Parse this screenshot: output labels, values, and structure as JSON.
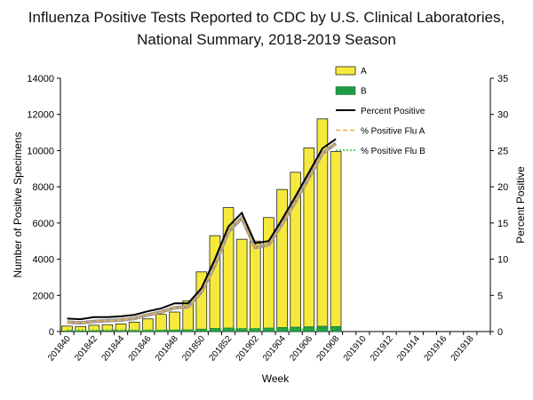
{
  "chart_data": {
    "type": "bar",
    "title": "Influenza Positive Tests Reported to CDC by U.S. Clinical Laboratories,",
    "subtitle": "National Summary, 2018-2019 Season",
    "xlabel": "Week",
    "ylabel": "Number of Positive Specimens",
    "y2label": "Percent Positive",
    "ylim": [
      0,
      14000
    ],
    "y2lim": [
      0,
      35
    ],
    "yticks": [
      "0",
      "2000",
      "4000",
      "6000",
      "8000",
      "10000",
      "12000",
      "14000"
    ],
    "y2ticks": [
      "0",
      "5",
      "10",
      "15",
      "20",
      "25",
      "30",
      "35"
    ],
    "x_tick_labels": [
      "201840",
      "201842",
      "201844",
      "201846",
      "201848",
      "201850",
      "201852",
      "201902",
      "201904",
      "201906",
      "201908",
      "201910",
      "201912",
      "201914",
      "201916",
      "201918"
    ],
    "weeks": [
      "201840",
      "201841",
      "201842",
      "201843",
      "201844",
      "201845",
      "201846",
      "201847",
      "201848",
      "201849",
      "201850",
      "201851",
      "201852",
      "201901",
      "201902",
      "201903",
      "201904",
      "201905",
      "201906",
      "201907",
      "201908",
      "201909",
      "201910",
      "201911",
      "201912",
      "201913",
      "201914",
      "201915",
      "201916",
      "201917",
      "201918",
      "201919"
    ],
    "series": [
      {
        "name": "A",
        "kind": "bar",
        "color": "#f5ea3c",
        "values": [
          300,
          280,
          350,
          380,
          420,
          520,
          700,
          950,
          1080,
          1700,
          3300,
          5300,
          6850,
          5100,
          5000,
          6300,
          7850,
          8800,
          10150,
          11750,
          9950
        ]
      },
      {
        "name": "B",
        "kind": "bar",
        "color": "#1f9a45",
        "values": [
          30,
          30,
          35,
          40,
          45,
          50,
          60,
          70,
          80,
          100,
          140,
          180,
          200,
          170,
          170,
          200,
          230,
          250,
          270,
          300,
          280
        ]
      },
      {
        "name": "Percent Positive",
        "kind": "line",
        "color": "#000000",
        "values": [
          1.8,
          1.7,
          2.0,
          2.0,
          2.1,
          2.3,
          2.8,
          3.2,
          3.9,
          3.9,
          6.0,
          10.0,
          14.5,
          16.4,
          12.2,
          12.5,
          15.5,
          18.7,
          22.0,
          25.3,
          26.6
        ]
      },
      {
        "name": "% Positive Flu A",
        "kind": "line",
        "color": "#f0b044",
        "values": [
          1.3,
          1.2,
          1.4,
          1.5,
          1.6,
          1.8,
          2.3,
          2.7,
          3.3,
          3.4,
          5.5,
          9.2,
          13.8,
          15.7,
          11.6,
          12.0,
          14.9,
          18.0,
          21.3,
          24.6,
          26.0
        ]
      },
      {
        "name": "% Positive Flu B",
        "kind": "line",
        "color": "#2fbf2f",
        "values": [
          0.2,
          0.2,
          0.2,
          0.2,
          0.2,
          0.2,
          0.2,
          0.2,
          0.2,
          0.2,
          0.2,
          0.3,
          0.3,
          0.3,
          0.3,
          0.3,
          0.3,
          0.3,
          0.3,
          0.3,
          0.3
        ]
      }
    ],
    "legend_position": "top-right"
  }
}
